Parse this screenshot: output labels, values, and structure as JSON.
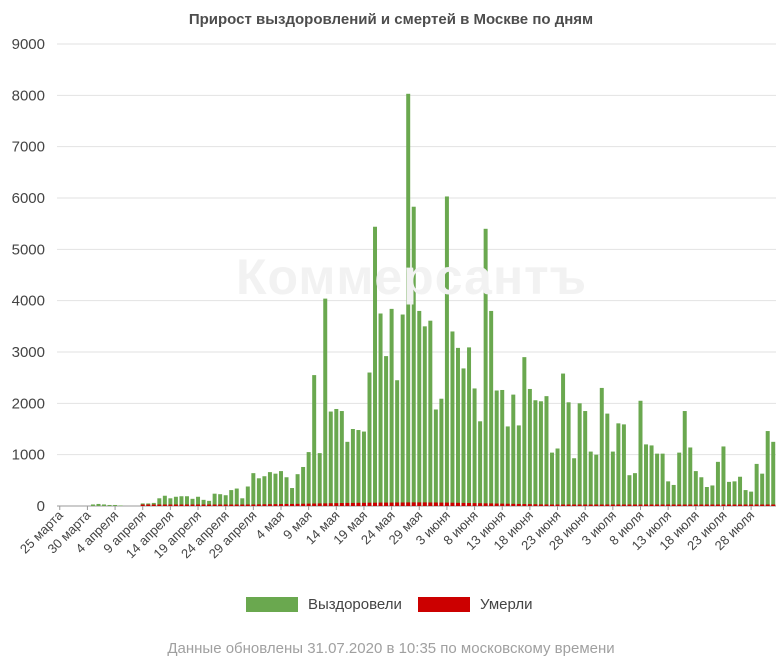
{
  "chart_data": {
    "type": "bar",
    "stacked": true,
    "title": "Прирост выздоровлений и смертей в Москве по дням",
    "watermark": "Коммерсантъ",
    "ylim": [
      0,
      9000
    ],
    "yticks": [
      0,
      1000,
      2000,
      3000,
      4000,
      5000,
      6000,
      7000,
      8000,
      9000
    ],
    "x_tick_labels": [
      "25 марта",
      "30 марта",
      "4 апреля",
      "9 апреля",
      "14 апреля",
      "19 апреля",
      "24 апреля",
      "29 апреля",
      "4 мая",
      "9 мая",
      "14 мая",
      "19 мая",
      "24 мая",
      "29 мая",
      "3 июня",
      "8 июня",
      "13 июня",
      "18 июня",
      "23 июня",
      "28 июня",
      "3 июля",
      "8 июля",
      "13 июля",
      "18 июля",
      "23 июля",
      "28 июля"
    ],
    "grid": true,
    "legend_position": "bottom",
    "series": [
      {
        "name": "Выздоровели",
        "color": "#6aa84f",
        "values": [
          0,
          0,
          0,
          0,
          0,
          0,
          30,
          40,
          30,
          20,
          20,
          10,
          0,
          0,
          0,
          50,
          50,
          60,
          150,
          200,
          150,
          180,
          190,
          190,
          140,
          180,
          120,
          100,
          240,
          230,
          210,
          310,
          340,
          150,
          380,
          640,
          540,
          580,
          660,
          630,
          680,
          560,
          350,
          620,
          760,
          1050,
          2550,
          1030,
          4040,
          1840,
          1890,
          1850,
          1250,
          1500,
          1480,
          1450,
          2600,
          5440,
          3750,
          2920,
          3840,
          2450,
          3730,
          8030,
          5830,
          3800,
          3500,
          3610,
          1880,
          2090,
          6030,
          3400,
          3080,
          2680,
          3090,
          2290,
          1650,
          5400,
          3800,
          2250,
          2260,
          1550,
          2170,
          1570,
          2900,
          2280,
          2060,
          2040,
          2140,
          1040,
          1120,
          2580,
          2020,
          930,
          2000,
          1850,
          1060,
          1000,
          2300,
          1800,
          1060,
          1610,
          1590,
          600,
          640,
          2050,
          1200,
          1180,
          1020,
          1020,
          480,
          410,
          1040,
          1850,
          1140,
          680,
          560,
          370,
          400,
          860,
          1160,
          470,
          480,
          570,
          310,
          280,
          820,
          630,
          1460,
          1250
        ]
      },
      {
        "name": "Умерли",
        "color": "#cc0000",
        "values": [
          0,
          0,
          0,
          0,
          0,
          0,
          0,
          0,
          0,
          0,
          0,
          0,
          0,
          0,
          0,
          2,
          2,
          3,
          3,
          4,
          4,
          5,
          5,
          6,
          6,
          8,
          8,
          10,
          12,
          14,
          16,
          20,
          22,
          25,
          28,
          30,
          32,
          34,
          35,
          36,
          38,
          40,
          40,
          42,
          44,
          46,
          48,
          50,
          52,
          54,
          56,
          58,
          60,
          60,
          62,
          62,
          64,
          64,
          66,
          66,
          66,
          68,
          68,
          70,
          70,
          70,
          70,
          68,
          68,
          66,
          66,
          64,
          62,
          60,
          58,
          56,
          54,
          52,
          50,
          48,
          46,
          44,
          42,
          40,
          38,
          36,
          34,
          32,
          30,
          28,
          26,
          25,
          24,
          22,
          22,
          20,
          20,
          20,
          20,
          20,
          20,
          20,
          18,
          18,
          18,
          18,
          16,
          16,
          16,
          16,
          16,
          16,
          14,
          14,
          14,
          14,
          14,
          14,
          14,
          12,
          12,
          12,
          12,
          12,
          12,
          12,
          12,
          12,
          12,
          12
        ]
      }
    ]
  },
  "legend": {
    "recovered_label": "Выздоровели",
    "died_label": "Умерли"
  },
  "footer": "Данные обновлены 31.07.2020 в 10:35 по московскому времени"
}
